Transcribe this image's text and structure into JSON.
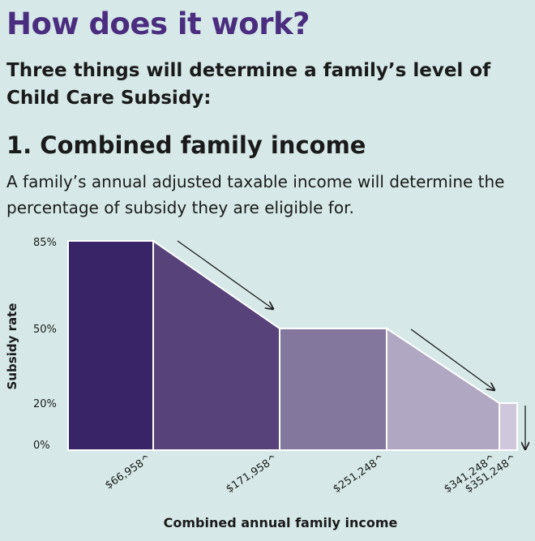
{
  "header": {
    "title": "How does it work?",
    "intro": "Three things will determine a family’s level of Child Care Subsidy:",
    "section_title": "1. Combined family income",
    "description": "A family’s annual adjusted taxable income will determine the percentage of subsidy they are eligible for."
  },
  "chart_data": {
    "type": "area",
    "xlabel": "Combined annual family income",
    "ylabel": "Subsidy rate",
    "y_ticks": [
      "85%",
      "50%",
      "20%",
      "0%"
    ],
    "x_ticks": [
      "$66,958^",
      "$171,958^",
      "$251,248^",
      "$341,248^",
      "$351,248^"
    ],
    "segments": [
      {
        "from": "0",
        "to": "$66,958^",
        "start_rate": 85,
        "end_rate": 85,
        "shape": "flat",
        "color": "#3a2468"
      },
      {
        "from": "$66,958^",
        "to": "$171,958^",
        "start_rate": 85,
        "end_rate": 50,
        "shape": "decreasing",
        "color": "#57437a"
      },
      {
        "from": "$171,958^",
        "to": "$251,248^",
        "start_rate": 50,
        "end_rate": 50,
        "shape": "flat",
        "color": "#84779d"
      },
      {
        "from": "$251,248^",
        "to": "$341,248^",
        "start_rate": 50,
        "end_rate": 20,
        "shape": "decreasing",
        "color": "#b0a7c2"
      },
      {
        "from": "$341,248^",
        "to": "$351,248^",
        "start_rate": 20,
        "end_rate": 20,
        "shape": "flat",
        "color": "#cfc8dc"
      },
      {
        "from": "$351,248^",
        "to": "",
        "start_rate": 0,
        "end_rate": 0,
        "shape": "zero",
        "color": ""
      }
    ],
    "annotations": [
      "arrow-down-1",
      "arrow-down-2",
      "arrow-down-3"
    ]
  }
}
